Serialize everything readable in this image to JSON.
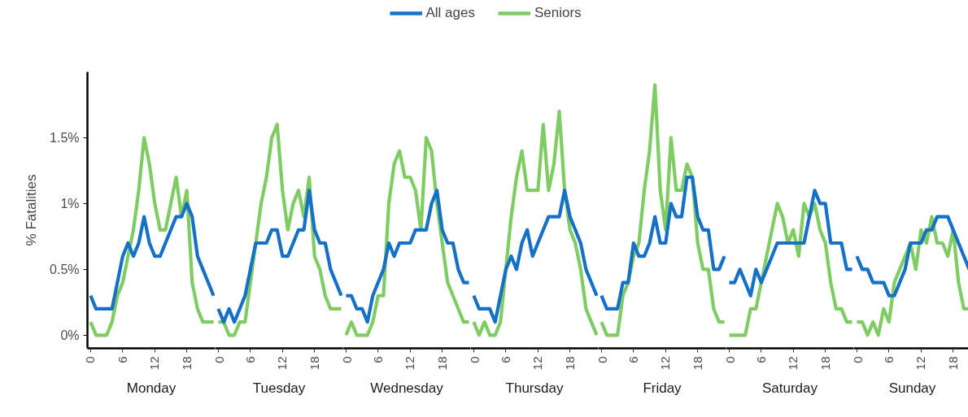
{
  "chart_data": [
    {
      "type": "line",
      "title": "Monday",
      "ylabel": "% Fatalities",
      "legend": "top",
      "xlim": [
        -0.6,
        23.3
      ],
      "xticks": [
        0,
        6,
        12,
        18
      ],
      "ylim": [
        -0.1,
        2.0
      ],
      "yticks": [
        {
          "value": 0,
          "label": "0%"
        },
        {
          "value": 0.5,
          "label": "0.5%"
        },
        {
          "value": 1,
          "label": "1%"
        },
        {
          "value": 1.5,
          "label": "1.5%"
        }
      ],
      "x": [
        0,
        1,
        2,
        3,
        4,
        5,
        6,
        7,
        8,
        9,
        10,
        11,
        12,
        13,
        14,
        15,
        16,
        17,
        18,
        19,
        20,
        21,
        22,
        23
      ],
      "series": [
        {
          "name": "All ages",
          "color": "#1570c7",
          "values": [
            0.3,
            0.2,
            0.2,
            0.2,
            0.2,
            0.4,
            0.6,
            0.7,
            0.6,
            0.7,
            0.9,
            0.7,
            0.6,
            0.6,
            0.7,
            0.8,
            0.9,
            0.9,
            1.0,
            0.9,
            0.6,
            0.5,
            0.4,
            0.3
          ]
        },
        {
          "name": "Seniors",
          "color": "#7fcc63",
          "values": [
            0.1,
            0,
            0,
            0,
            0.1,
            0.3,
            0.4,
            0.6,
            0.8,
            1.1,
            1.5,
            1.3,
            1.0,
            0.8,
            0.8,
            1.0,
            1.2,
            0.9,
            1.1,
            0.4,
            0.2,
            0.1,
            0.1,
            0.1
          ]
        }
      ]
    },
    {
      "type": "line",
      "title": "Tuesday",
      "tick_labels": "x",
      "xlim": [
        -0.6,
        23.3
      ],
      "xticks": [
        0,
        6,
        12,
        18
      ],
      "ylim": [
        -0.1,
        2.0
      ],
      "x": [
        0,
        1,
        2,
        3,
        4,
        5,
        6,
        7,
        8,
        9,
        10,
        11,
        12,
        13,
        14,
        15,
        16,
        17,
        18,
        19,
        20,
        21,
        22,
        23
      ],
      "series": [
        {
          "color": "#1570c7",
          "values": [
            0.2,
            0.1,
            0.2,
            0.1,
            0.2,
            0.3,
            0.5,
            0.7,
            0.7,
            0.7,
            0.8,
            0.8,
            0.6,
            0.6,
            0.7,
            0.8,
            0.8,
            1.1,
            0.8,
            0.7,
            0.7,
            0.5,
            0.4,
            0.3
          ]
        },
        {
          "color": "#7fcc63",
          "values": [
            0.1,
            0.1,
            0,
            0,
            0.1,
            0.1,
            0.4,
            0.7,
            1.0,
            1.2,
            1.5,
            1.6,
            1.1,
            0.8,
            1.0,
            1.1,
            0.9,
            1.2,
            0.6,
            0.5,
            0.3,
            0.2,
            0.2,
            0.2
          ]
        }
      ]
    },
    {
      "type": "line",
      "title": "Wednesday",
      "tick_labels": "x",
      "xlim": [
        -0.6,
        23.3
      ],
      "xticks": [
        0,
        6,
        12,
        18
      ],
      "ylim": [
        -0.1,
        2.0
      ],
      "x": [
        0,
        1,
        2,
        3,
        4,
        5,
        6,
        7,
        8,
        9,
        10,
        11,
        12,
        13,
        14,
        15,
        16,
        17,
        18,
        19,
        20,
        21,
        22,
        23
      ],
      "series": [
        {
          "color": "#1570c7",
          "values": [
            0.3,
            0.3,
            0.2,
            0.2,
            0.1,
            0.3,
            0.4,
            0.5,
            0.7,
            0.6,
            0.7,
            0.7,
            0.7,
            0.8,
            0.8,
            0.8,
            1.0,
            1.1,
            0.8,
            0.7,
            0.7,
            0.5,
            0.4,
            0.4
          ]
        },
        {
          "color": "#7fcc63",
          "values": [
            0,
            0.1,
            0,
            0,
            0,
            0.1,
            0.3,
            0.3,
            1.0,
            1.3,
            1.4,
            1.2,
            1.2,
            1.1,
            0.8,
            1.5,
            1.4,
            1.0,
            0.7,
            0.4,
            0.3,
            0.2,
            0.1,
            0.1
          ]
        }
      ]
    },
    {
      "type": "line",
      "title": "Thursday",
      "tick_labels": "x",
      "xlim": [
        -0.6,
        23.3
      ],
      "xticks": [
        0,
        6,
        12,
        18
      ],
      "ylim": [
        -0.1,
        2.0
      ],
      "x": [
        0,
        1,
        2,
        3,
        4,
        5,
        6,
        7,
        8,
        9,
        10,
        11,
        12,
        13,
        14,
        15,
        16,
        17,
        18,
        19,
        20,
        21,
        22,
        23
      ],
      "series": [
        {
          "color": "#1570c7",
          "values": [
            0.3,
            0.2,
            0.2,
            0.2,
            0.1,
            0.3,
            0.5,
            0.6,
            0.5,
            0.7,
            0.8,
            0.6,
            0.7,
            0.8,
            0.9,
            0.9,
            0.9,
            1.1,
            0.9,
            0.8,
            0.7,
            0.5,
            0.4,
            0.3
          ]
        },
        {
          "color": "#7fcc63",
          "values": [
            0.1,
            0,
            0.1,
            0,
            0,
            0.1,
            0.5,
            0.9,
            1.2,
            1.4,
            1.1,
            1.1,
            1.1,
            1.6,
            1.1,
            1.3,
            1.7,
            1.1,
            0.8,
            0.7,
            0.5,
            0.2,
            0.1,
            0
          ]
        }
      ]
    },
    {
      "type": "line",
      "title": "Friday",
      "tick_labels": "x",
      "xlim": [
        -0.6,
        23.3
      ],
      "xticks": [
        0,
        6,
        12,
        18
      ],
      "ylim": [
        -0.1,
        2.0
      ],
      "x": [
        0,
        1,
        2,
        3,
        4,
        5,
        6,
        7,
        8,
        9,
        10,
        11,
        12,
        13,
        14,
        15,
        16,
        17,
        18,
        19,
        20,
        21,
        22,
        23
      ],
      "series": [
        {
          "color": "#1570c7",
          "values": [
            0.3,
            0.2,
            0.2,
            0.2,
            0.4,
            0.4,
            0.7,
            0.6,
            0.6,
            0.7,
            0.9,
            0.7,
            0.7,
            1.0,
            0.9,
            0.9,
            1.2,
            1.2,
            0.9,
            0.8,
            0.8,
            0.5,
            0.5,
            0.6
          ]
        },
        {
          "color": "#7fcc63",
          "values": [
            0.1,
            0,
            0,
            0,
            0.3,
            0.4,
            0.6,
            0.7,
            1.1,
            1.4,
            1.9,
            1.1,
            0.8,
            1.5,
            1.1,
            1.1,
            1.3,
            1.2,
            0.7,
            0.5,
            0.5,
            0.2,
            0.1,
            0.1
          ]
        }
      ]
    },
    {
      "type": "line",
      "title": "Saturday",
      "tick_labels": "x",
      "xlim": [
        -0.6,
        23.3
      ],
      "xticks": [
        0,
        6,
        12,
        18
      ],
      "ylim": [
        -0.1,
        2.0
      ],
      "x": [
        0,
        1,
        2,
        3,
        4,
        5,
        6,
        7,
        8,
        9,
        10,
        11,
        12,
        13,
        14,
        15,
        16,
        17,
        18,
        19,
        20,
        21,
        22,
        23
      ],
      "series": [
        {
          "color": "#1570c7",
          "values": [
            0.4,
            0.4,
            0.5,
            0.4,
            0.3,
            0.5,
            0.4,
            0.5,
            0.6,
            0.7,
            0.7,
            0.7,
            0.7,
            0.7,
            0.7,
            0.9,
            1.1,
            1.0,
            1.0,
            0.7,
            0.7,
            0.7,
            0.5,
            0.5
          ]
        },
        {
          "color": "#7fcc63",
          "values": [
            0,
            0,
            0,
            0,
            0.2,
            0.2,
            0.4,
            0.6,
            0.8,
            1.0,
            0.9,
            0.7,
            0.8,
            0.6,
            1.0,
            0.9,
            1.0,
            0.8,
            0.7,
            0.4,
            0.2,
            0.2,
            0.1,
            0.1
          ]
        }
      ]
    },
    {
      "type": "line",
      "title": "Sunday",
      "tick_labels": "x",
      "xlim": [
        -0.6,
        21.3
      ],
      "xticks": [
        0,
        6,
        12,
        18
      ],
      "ylim": [
        -0.1,
        2.0
      ],
      "x": [
        0,
        1,
        2,
        3,
        4,
        5,
        6,
        7,
        8,
        9,
        10,
        11,
        12,
        13,
        14,
        15,
        16,
        17,
        18,
        19,
        20,
        21
      ],
      "series": [
        {
          "color": "#1570c7",
          "values": [
            0.6,
            0.5,
            0.5,
            0.4,
            0.4,
            0.4,
            0.3,
            0.3,
            0.4,
            0.5,
            0.7,
            0.7,
            0.7,
            0.8,
            0.8,
            0.9,
            0.9,
            0.9,
            0.8,
            0.7,
            0.6,
            0.5
          ]
        },
        {
          "color": "#7fcc63",
          "values": [
            0.1,
            0.1,
            0,
            0.1,
            0,
            0.2,
            0.1,
            0.4,
            0.5,
            0.6,
            0.7,
            0.5,
            0.8,
            0.7,
            0.9,
            0.7,
            0.7,
            0.6,
            0.8,
            0.4,
            0.2,
            0.2
          ]
        }
      ]
    }
  ]
}
